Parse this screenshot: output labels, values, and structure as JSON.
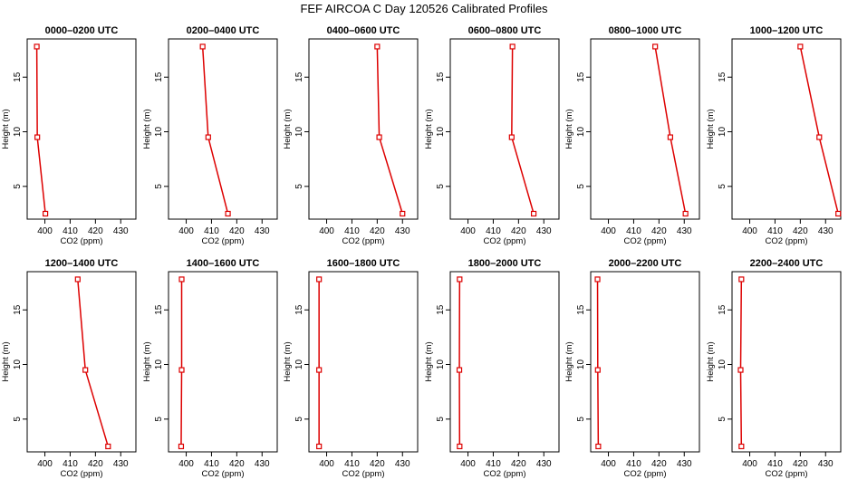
{
  "page_title": "FEF AIRCOA C  Day 120526  Calibrated Profiles",
  "chart_data": {
    "type": "line",
    "xlabel": "CO2 (ppm)",
    "ylabel": "Height (m)",
    "xlim": [
      393,
      436
    ],
    "ylim": [
      2,
      18.5
    ],
    "xticks": [
      400,
      410,
      420,
      430
    ],
    "yticks": [
      5,
      10,
      15
    ],
    "line_color": "#dd0000",
    "marker": "open-square",
    "heights": [
      17.8,
      9.5,
      2.5
    ],
    "panels": [
      {
        "title": "0000–0200 UTC",
        "co2": [
          396.8,
          397.0,
          400.2
        ]
      },
      {
        "title": "0200–0400 UTC",
        "co2": [
          406.5,
          408.7,
          416.5
        ]
      },
      {
        "title": "0400–0600 UTC",
        "co2": [
          420.0,
          420.8,
          430.0
        ]
      },
      {
        "title": "0600–0800 UTC",
        "co2": [
          417.6,
          417.3,
          426.0
        ]
      },
      {
        "title": "0800–1000 UTC",
        "co2": [
          418.5,
          424.5,
          430.5
        ]
      },
      {
        "title": "1000–1200 UTC",
        "co2": [
          420.0,
          427.5,
          435.0
        ]
      },
      {
        "title": "1200–1400 UTC",
        "co2": [
          413.0,
          416.0,
          425.0
        ]
      },
      {
        "title": "1400–1600 UTC",
        "co2": [
          398.2,
          398.2,
          398.0
        ]
      },
      {
        "title": "1600–1800 UTC",
        "co2": [
          397.0,
          397.0,
          397.0
        ]
      },
      {
        "title": "1800–2000 UTC",
        "co2": [
          396.7,
          396.6,
          396.7
        ]
      },
      {
        "title": "2000–2200 UTC",
        "co2": [
          395.7,
          395.8,
          396.0
        ]
      },
      {
        "title": "2200–2400 UTC",
        "co2": [
          396.7,
          396.4,
          396.7
        ]
      }
    ]
  }
}
